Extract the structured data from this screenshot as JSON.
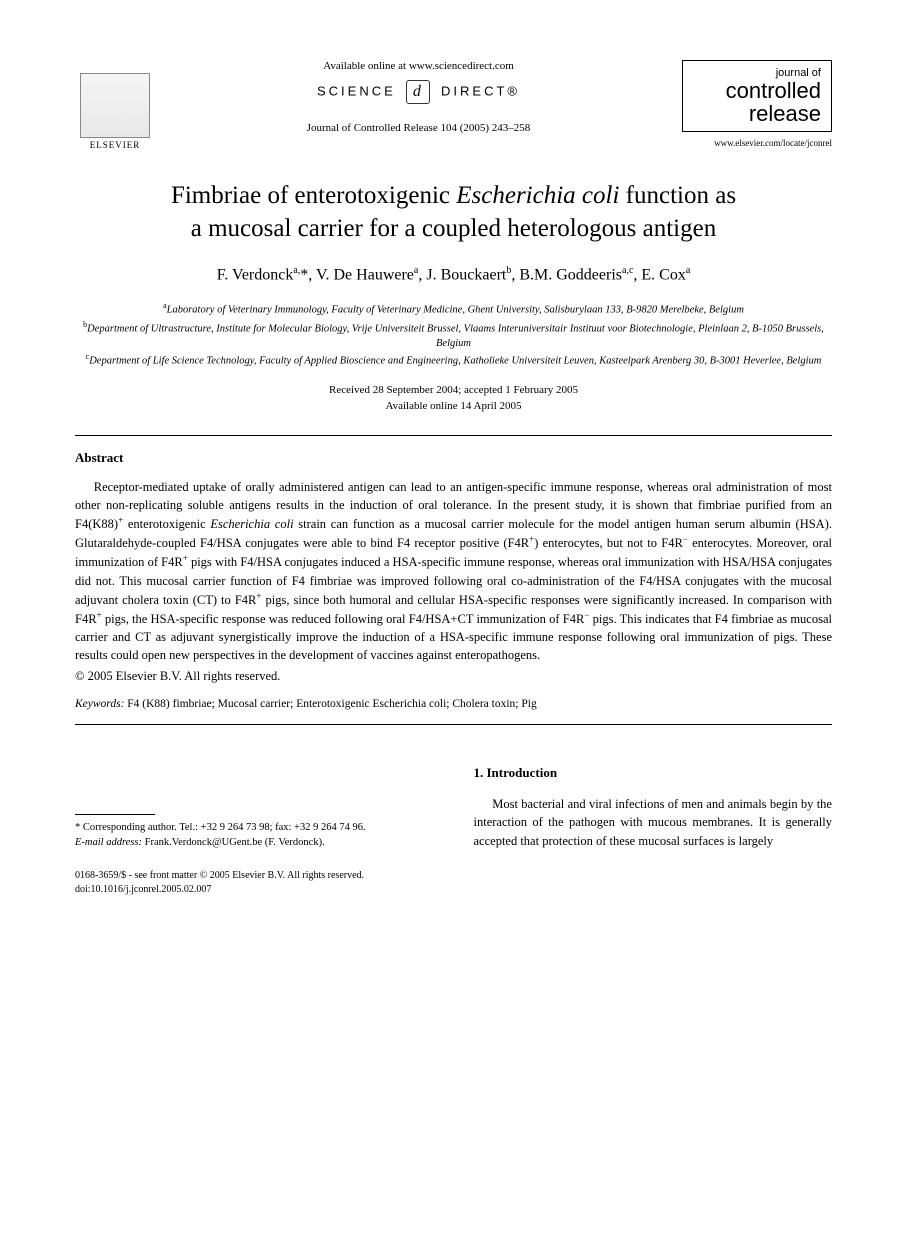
{
  "header": {
    "publisher": "ELSEVIER",
    "available_online": "Available online at www.sciencedirect.com",
    "science_label_left": "SCIENCE",
    "science_label_right": "DIRECT®",
    "sd_glyph": "d",
    "citation": "Journal of Controlled Release 104 (2005) 243–258",
    "journal_of": "journal of",
    "journal_name_1": "controlled",
    "journal_name_2": "release",
    "journal_url": "www.elsevier.com/locate/jconrel"
  },
  "title": {
    "line1_prefix": "Fimbriae of enterotoxigenic ",
    "line1_italic": "Escherichia coli",
    "line1_suffix": " function as",
    "line2": "a mucosal carrier for a coupled heterologous antigen"
  },
  "authors_html": "F. Verdonck<sup>a,</sup>*, V. De Hauwere<sup>a</sup>, J. Bouckaert<sup>b</sup>, B.M. Goddeeris<sup>a,c</sup>, E. Cox<sup>a</sup>",
  "affiliations": {
    "a": "Laboratory of Veterinary Immunology, Faculty of Veterinary Medicine, Ghent University, Salisburylaan 133, B-9820 Merelbeke, Belgium",
    "b": "Department of Ultrastructure, Institute for Molecular Biology, Vrije Universiteit Brussel, Vlaams Interuniversitair Instituut voor Biotechnologie, Pleinlaan 2, B-1050 Brussels, Belgium",
    "c": "Department of Life Science Technology, Faculty of Applied Bioscience and Engineering, Katholieke Universiteit Leuven, Kasteelpark Arenberg 30, B-3001 Heverlee, Belgium"
  },
  "dates": {
    "received": "Received 28 September 2004; accepted 1 February 2005",
    "online": "Available online 14 April 2005"
  },
  "abstract": {
    "heading": "Abstract",
    "body_html": "Receptor-mediated uptake of orally administered antigen can lead to an antigen-specific immune response, whereas oral administration of most other non-replicating soluble antigens results in the induction of oral tolerance. In the present study, it is shown that fimbriae purified from an F4(K88)<sup>+</sup> enterotoxigenic <i>Escherichia coli</i> strain can function as a mucosal carrier molecule for the model antigen human serum albumin (HSA). Glutaraldehyde-coupled F4/HSA conjugates were able to bind F4 receptor positive (F4R<sup>+</sup>) enterocytes, but not to F4R<sup>−</sup> enterocytes. Moreover, oral immunization of F4R<sup>+</sup> pigs with F4/HSA conjugates induced a HSA-specific immune response, whereas oral immunization with HSA/HSA conjugates did not. This mucosal carrier function of F4 fimbriae was improved following oral co-administration of the F4/HSA conjugates with the mucosal adjuvant cholera toxin (CT) to F4R<sup>+</sup> pigs, since both humoral and cellular HSA-specific responses were significantly increased. In comparison with F4R<sup>+</sup> pigs, the HSA-specific response was reduced following oral F4/HSA+CT immunization of F4R<sup>−</sup> pigs. This indicates that F4 fimbriae as mucosal carrier and CT as adjuvant synergistically improve the induction of a HSA-specific immune response following oral immunization of pigs. These results could open new perspectives in the development of vaccines against enteropathogens.",
    "copyright": "© 2005 Elsevier B.V. All rights reserved."
  },
  "keywords": {
    "label": "Keywords:",
    "text": " F4 (K88) fimbriae; Mucosal carrier; Enterotoxigenic Escherichia coli; Cholera toxin; Pig"
  },
  "footnote": {
    "corr": "* Corresponding author. Tel.: +32 9 264 73 98; fax: +32 9 264 74 96.",
    "email_label": "E-mail address:",
    "email": " Frank.Verdonck@UGent.be (F. Verdonck)."
  },
  "intro": {
    "heading": "1. Introduction",
    "text": "Most bacterial and viral infections of men and animals begin by the interaction of the pathogen with mucous membranes. It is generally accepted that protection of these mucosal surfaces is largely"
  },
  "bottom": {
    "issn": "0168-3659/$ - see front matter © 2005 Elsevier B.V. All rights reserved.",
    "doi": "doi:10.1016/j.jconrel.2005.02.007"
  }
}
